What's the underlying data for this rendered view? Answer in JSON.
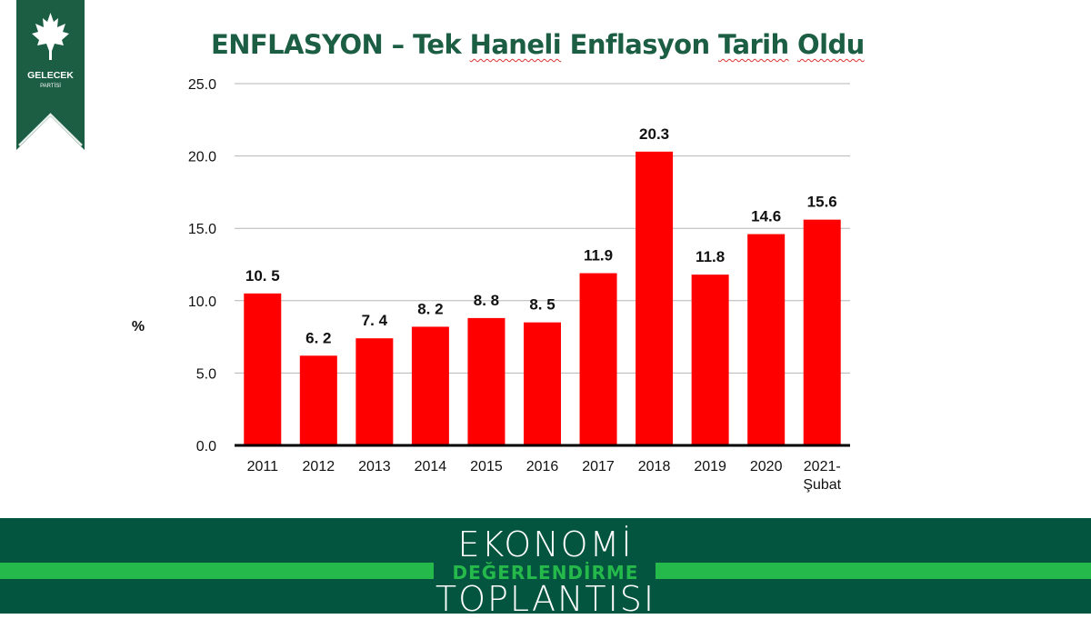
{
  "logo": {
    "name": "GELECEK",
    "sub": "PARTİSİ",
    "icon": "maple-leaf-icon",
    "color": "#1b5e44"
  },
  "title": {
    "part1": "ENFLASYON – Tek ",
    "part2": "Haneli",
    "part3": " Enflasyon ",
    "part4": "Tarih",
    "part5": " ",
    "part6": "Oldu"
  },
  "chart_data": {
    "type": "bar",
    "categories": [
      "2011",
      "2012",
      "2013",
      "2014",
      "2015",
      "2016",
      "2017",
      "2018",
      "2019",
      "2020",
      "2021-"
    ],
    "category_sublabels": [
      "",
      "",
      "",
      "",
      "",
      "",
      "",
      "",
      "",
      "",
      "Şubat"
    ],
    "values": [
      10.5,
      6.2,
      7.4,
      8.2,
      8.8,
      8.5,
      11.9,
      20.3,
      11.8,
      14.6,
      15.6
    ],
    "value_labels": [
      "10. 5",
      "6. 2",
      "7. 4",
      "8. 2",
      "8. 8",
      "8. 5",
      "11.9",
      "20.3",
      "11.8",
      "14.6",
      "15.6"
    ],
    "ylabel": "%",
    "ylim": [
      0,
      25
    ],
    "yticks": [
      "0.0",
      "5.0",
      "10.0",
      "15.0",
      "20.0",
      "25.0"
    ],
    "grid": true,
    "bar_color": "#ff0000"
  },
  "footer": {
    "line1": "EKONOMİ",
    "line2": "DEĞERLENDİRME",
    "line3": "TOPLANTISI",
    "bg_color": "#03553f",
    "accent_color": "#25b84a"
  }
}
